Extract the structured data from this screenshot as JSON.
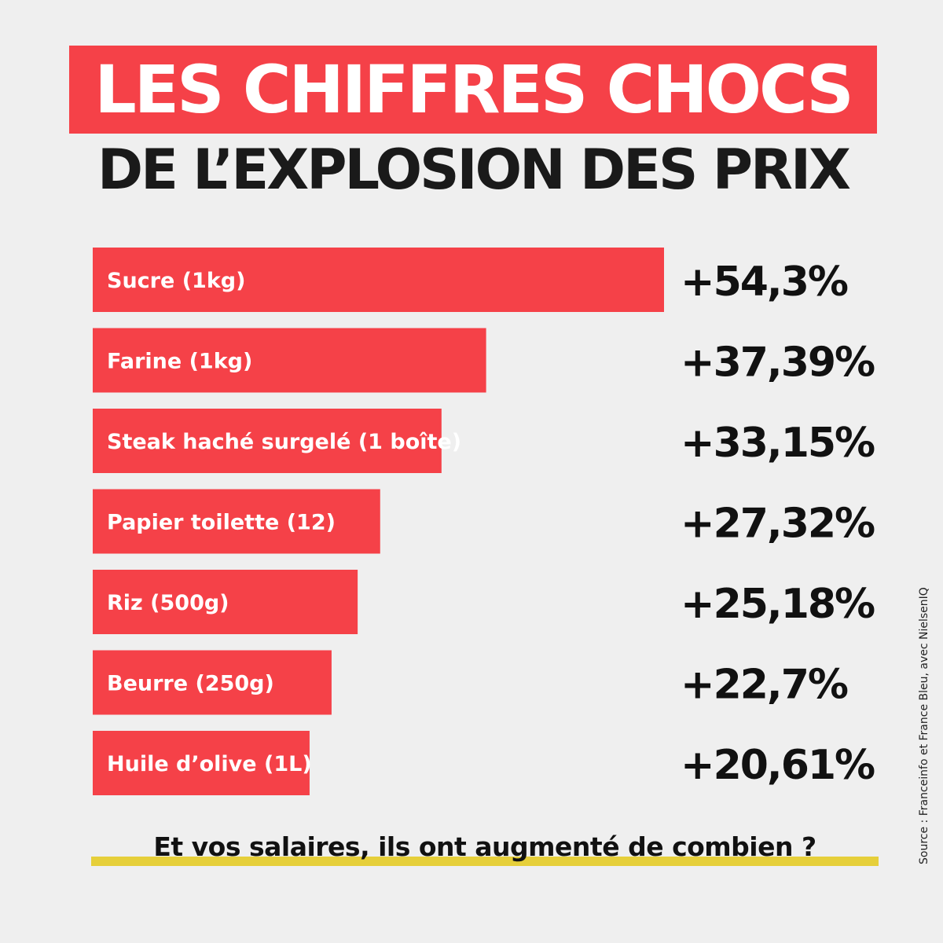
{
  "header": {
    "title": "LES CHIFFRES CHOCS",
    "subtitle": "DE L’EXPLOSION DES PRIX"
  },
  "colors": {
    "bar": "#f54148",
    "background": "#efefef",
    "highlight": "#e6cf3a"
  },
  "chart_data": {
    "type": "bar",
    "orientation": "horizontal",
    "categories": [
      "Sucre (1kg)",
      "Farine (1kg)",
      "Steak haché surgelé (1 boîte)",
      "Papier toilette (12)",
      "Riz (500g)",
      "Beurre (250g)",
      "Huile d’olive (1L)"
    ],
    "values": [
      54.3,
      37.39,
      33.15,
      27.32,
      25.18,
      22.7,
      20.61
    ],
    "value_labels": [
      "+54,3%",
      "+37,39%",
      "+33,15%",
      "+27,32%",
      "+25,18%",
      "+22,7%",
      "+20,61%"
    ],
    "unit": "%",
    "xlim": [
      0,
      54.3
    ],
    "grid": false
  },
  "footer": {
    "question": "Et vos salaires, ils ont augmenté de combien ?",
    "source": "Source : Franceinfo et France Bleu, avec NielsenIQ"
  }
}
